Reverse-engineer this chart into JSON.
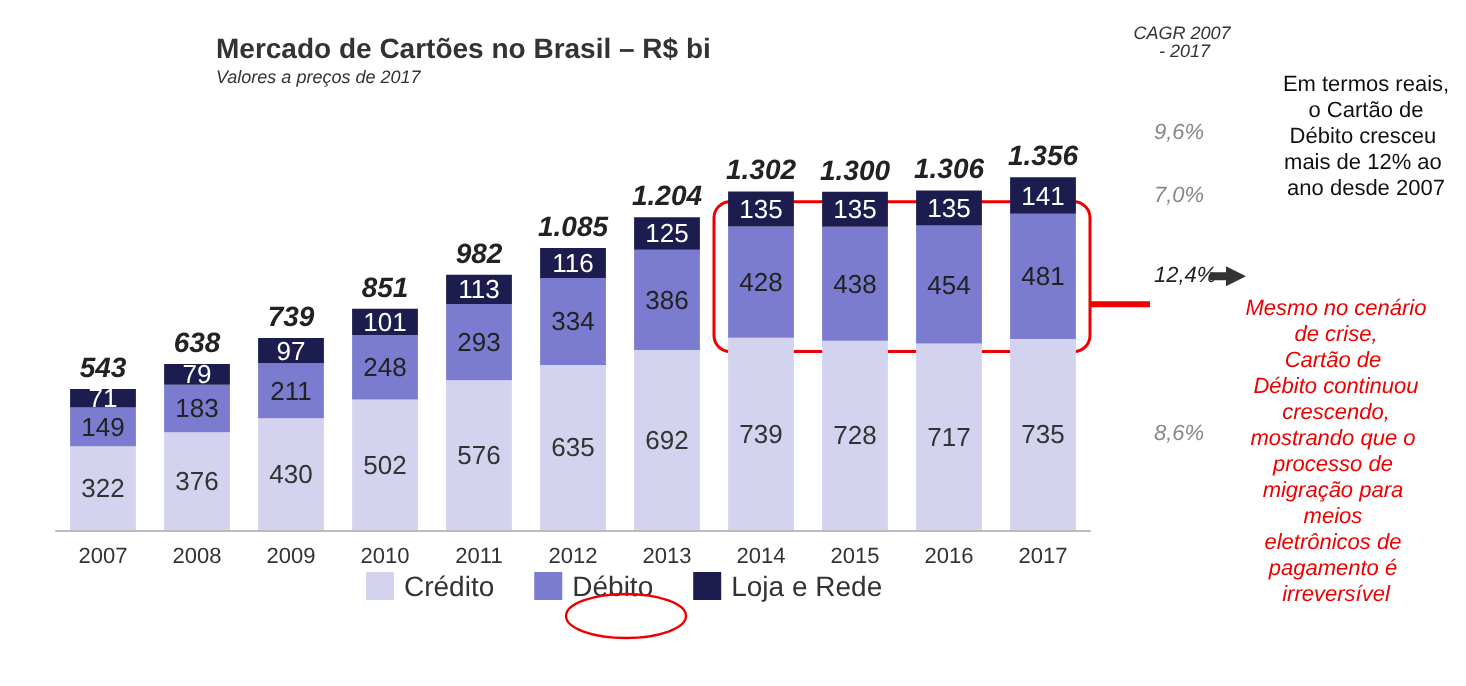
{
  "chart_data": {
    "type": "bar",
    "title": "Mercado de Cartões no Brasil – R$ bi",
    "subtitle": "Valores a preços de 2017",
    "categories": [
      "2007",
      "2008",
      "2009",
      "2010",
      "2011",
      "2012",
      "2013",
      "2014",
      "2015",
      "2016",
      "2017"
    ],
    "stacked": true,
    "data_labels": true,
    "legend": "bottom",
    "grid": false,
    "series": [
      {
        "name": "Crédito",
        "color": "#d3d3ef",
        "values": [
          322,
          376,
          430,
          502,
          576,
          635,
          692,
          739,
          728,
          717,
          735
        ]
      },
      {
        "name": "Débito",
        "color": "#7b7bd0",
        "values": [
          149,
          183,
          211,
          248,
          293,
          334,
          386,
          428,
          438,
          454,
          481
        ]
      },
      {
        "name": "Loja e Rede",
        "color": "#1c1c4e",
        "values": [
          71,
          79,
          97,
          101,
          113,
          116,
          125,
          135,
          135,
          135,
          141
        ]
      }
    ],
    "totals": [
      "543",
      "638",
      "739",
      "851",
      "982",
      "1.085",
      "1.204",
      "1.302",
      "1.300",
      "1.306",
      "1.356"
    ],
    "annotations": [
      "CAGR 2007 - 2017",
      "9,6%",
      "7,0%",
      "12,4%",
      "8,6%",
      "Em termos reais, o Cartão de Débito cresceu mais de 12% ao ano desde 2007",
      "Mesmo no cenário de crise, Cartão de Débito continuou crescendo, mostrando que o processo de migração para meios eletrônicos de pagamento é irreversível"
    ]
  }
}
